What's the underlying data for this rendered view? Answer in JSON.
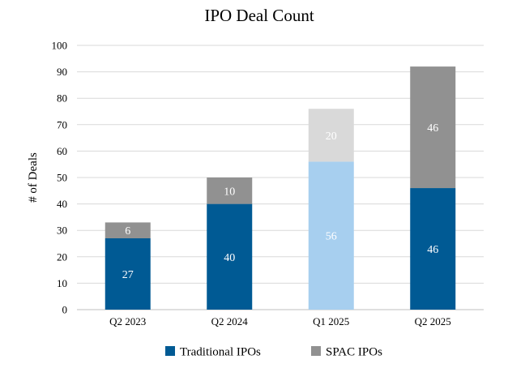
{
  "chart_data": {
    "type": "bar",
    "stacked": true,
    "title": "IPO Deal Count",
    "xlabel": "",
    "ylabel": "# of Deals",
    "ylim": [
      0,
      100
    ],
    "yticks": [
      0,
      10,
      20,
      30,
      40,
      50,
      60,
      70,
      80,
      90,
      100
    ],
    "grid": true,
    "legend_position": "bottom",
    "categories": [
      "Q2 2023",
      "Q2 2024",
      "Q1 2025",
      "Q2 2025"
    ],
    "series": [
      {
        "name": "Traditional IPOs",
        "values": [
          27,
          40,
          56,
          46
        ],
        "color": "#005a94",
        "bar_colors": [
          "#005a94",
          "#005a94",
          "#a7cfef",
          "#005a94"
        ]
      },
      {
        "name": "SPAC IPOs",
        "values": [
          6,
          10,
          20,
          46
        ],
        "color": "#919191",
        "bar_colors": [
          "#919191",
          "#919191",
          "#d9d9d9",
          "#919191"
        ]
      }
    ],
    "data_labels": true
  }
}
